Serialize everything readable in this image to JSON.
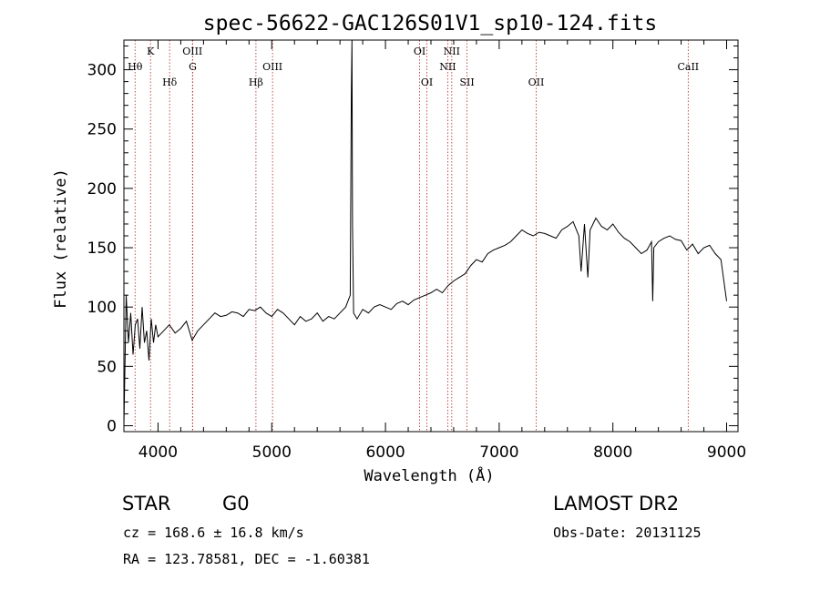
{
  "chart_data": {
    "type": "line",
    "title": "spec-56622-GAC126S01V1_sp10-124.fits",
    "xlabel": "Wavelength (Å)",
    "ylabel": "Flux (relative)",
    "xlim": [
      3700,
      9100
    ],
    "ylim": [
      -5,
      325
    ],
    "xticks": [
      4000,
      5000,
      6000,
      7000,
      8000,
      9000
    ],
    "yticks": [
      0,
      50,
      100,
      150,
      200,
      250,
      300
    ],
    "grid": false,
    "series": [
      {
        "x": [
          3700,
          3720,
          3740,
          3760,
          3780,
          3800,
          3820,
          3840,
          3860,
          3880,
          3900,
          3920,
          3940,
          3960,
          3980,
          4000,
          4050,
          4100,
          4150,
          4200,
          4250,
          4300,
          4350,
          4400,
          4450,
          4500,
          4550,
          4600,
          4650,
          4700,
          4750,
          4800,
          4850,
          4900,
          4950,
          5000,
          5050,
          5100,
          5150,
          5200,
          5250,
          5300,
          5350,
          5400,
          5450,
          5500,
          5550,
          5600,
          5650,
          5690,
          5700,
          5705,
          5710,
          5720,
          5750,
          5800,
          5850,
          5900,
          5950,
          6000,
          6050,
          6100,
          6150,
          6200,
          6250,
          6300,
          6350,
          6400,
          6450,
          6500,
          6550,
          6600,
          6650,
          6700,
          6750,
          6800,
          6850,
          6900,
          6950,
          7000,
          7050,
          7100,
          7150,
          7200,
          7250,
          7300,
          7350,
          7400,
          7450,
          7500,
          7550,
          7600,
          7650,
          7700,
          7720,
          7750,
          7780,
          7800,
          7850,
          7900,
          7950,
          8000,
          8050,
          8100,
          8150,
          8200,
          8250,
          8300,
          8340,
          8350,
          8360,
          8400,
          8450,
          8500,
          8550,
          8600,
          8650,
          8700,
          8750,
          8800,
          8850,
          8900,
          8950,
          9000
        ],
        "y": [
          0,
          110,
          70,
          95,
          60,
          85,
          90,
          65,
          100,
          70,
          80,
          55,
          90,
          70,
          85,
          75,
          80,
          85,
          78,
          82,
          88,
          72,
          80,
          85,
          90,
          95,
          92,
          93,
          96,
          95,
          92,
          98,
          97,
          100,
          95,
          92,
          98,
          95,
          90,
          85,
          92,
          88,
          90,
          95,
          88,
          92,
          90,
          95,
          100,
          110,
          280,
          325,
          170,
          95,
          90,
          98,
          95,
          100,
          102,
          100,
          98,
          103,
          105,
          102,
          106,
          108,
          110,
          112,
          115,
          112,
          118,
          122,
          125,
          128,
          135,
          140,
          138,
          145,
          148,
          150,
          152,
          155,
          160,
          165,
          162,
          160,
          163,
          162,
          160,
          158,
          165,
          168,
          172,
          160,
          130,
          170,
          125,
          165,
          175,
          168,
          165,
          170,
          163,
          158,
          155,
          150,
          145,
          148,
          155,
          105,
          150,
          155,
          158,
          160,
          157,
          156,
          148,
          153,
          145,
          150,
          152,
          145,
          140,
          105
        ]
      }
    ],
    "spectral_lines": [
      {
        "label": "Hθ",
        "wavelength": 3798,
        "row": 2
      },
      {
        "label": "K",
        "wavelength": 3934,
        "row": 0
      },
      {
        "label": "Hδ",
        "wavelength": 4102,
        "row": 3
      },
      {
        "label": "OIII",
        "wavelength": 4303,
        "row": 0
      },
      {
        "label": "G",
        "wavelength": 4305,
        "row": 2
      },
      {
        "label": "Hβ",
        "wavelength": 4861,
        "row": 3
      },
      {
        "label": "OIII",
        "wavelength": 5007,
        "row": 2
      },
      {
        "label": "OI",
        "wavelength": 6300,
        "row": 0
      },
      {
        "label": "OI",
        "wavelength": 6364,
        "row": 3
      },
      {
        "label": "NII",
        "wavelength": 6548,
        "row": 2
      },
      {
        "label": "NII",
        "wavelength": 6583,
        "row": 0
      },
      {
        "label": "SII",
        "wavelength": 6717,
        "row": 3
      },
      {
        "label": "OII",
        "wavelength": 7325,
        "row": 3
      },
      {
        "label": "CaII",
        "wavelength": 8662,
        "row": 2
      }
    ],
    "line_color": "#000000",
    "marker_color": "#b22222"
  },
  "info": {
    "class_label": "STAR",
    "subclass_label": "G0",
    "survey": "LAMOST DR2",
    "cz": "cz = 168.6 ± 16.8 km/s",
    "obs_date": "Obs-Date: 20131125",
    "coords": "RA = 123.78581, DEC =  -1.60381"
  }
}
